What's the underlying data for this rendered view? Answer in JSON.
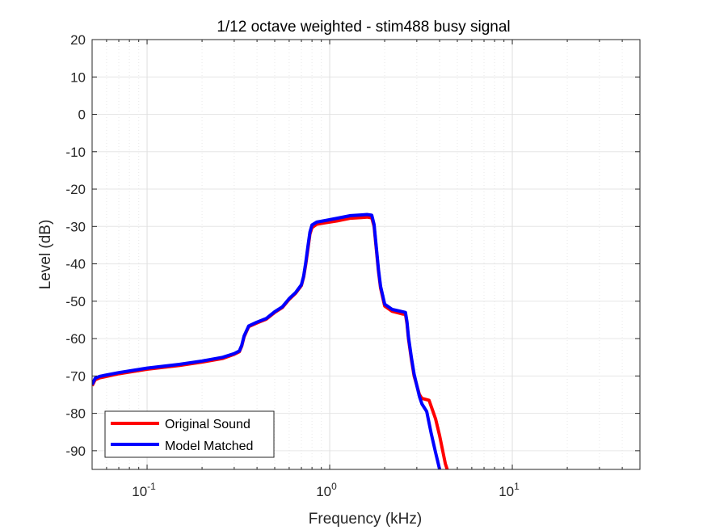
{
  "chart_data": {
    "type": "line",
    "title": "1/12 octave weighted - stim488 busy signal",
    "xlabel": "Frequency (kHz)",
    "ylabel": "Level (dB)",
    "x_scale": "log",
    "xlim": [
      0.05,
      50
    ],
    "ylim": [
      -95,
      20
    ],
    "yticks": [
      20,
      10,
      0,
      -10,
      -20,
      -30,
      -40,
      -50,
      -60,
      -70,
      -80,
      -90
    ],
    "xticks": [
      {
        "value": 0.1,
        "base": "10",
        "exp": "-1"
      },
      {
        "value": 1,
        "base": "10",
        "exp": "0"
      },
      {
        "value": 10,
        "base": "10",
        "exp": "1"
      }
    ],
    "grid": true,
    "legend_position": "bottom-left",
    "series": [
      {
        "name": "Original Sound",
        "color": "#ff0000",
        "points": [
          [
            0.05,
            -72.6
          ],
          [
            0.052,
            -71
          ],
          [
            0.055,
            -70.5
          ],
          [
            0.07,
            -69.4
          ],
          [
            0.1,
            -68.2
          ],
          [
            0.15,
            -67.2
          ],
          [
            0.2,
            -66.3
          ],
          [
            0.26,
            -65.3
          ],
          [
            0.3,
            -64.2
          ],
          [
            0.32,
            -63.5
          ],
          [
            0.33,
            -62
          ],
          [
            0.34,
            -59.5
          ],
          [
            0.36,
            -56.8
          ],
          [
            0.4,
            -55.8
          ],
          [
            0.45,
            -54.8
          ],
          [
            0.5,
            -53
          ],
          [
            0.55,
            -51.7
          ],
          [
            0.6,
            -49.5
          ],
          [
            0.65,
            -47.9
          ],
          [
            0.7,
            -45.8
          ],
          [
            0.72,
            -43.5
          ],
          [
            0.74,
            -40
          ],
          [
            0.76,
            -36
          ],
          [
            0.78,
            -32
          ],
          [
            0.8,
            -30.3
          ],
          [
            0.85,
            -29.4
          ],
          [
            0.95,
            -29
          ],
          [
            1.1,
            -28.5
          ],
          [
            1.3,
            -27.8
          ],
          [
            1.5,
            -27.6
          ],
          [
            1.6,
            -27.5
          ],
          [
            1.7,
            -27.7
          ],
          [
            1.75,
            -30
          ],
          [
            1.8,
            -36
          ],
          [
            1.85,
            -42
          ],
          [
            1.9,
            -46.5
          ],
          [
            2.0,
            -51.3
          ],
          [
            2.2,
            -52.7
          ],
          [
            2.5,
            -53.4
          ],
          [
            2.6,
            -53.5
          ],
          [
            2.65,
            -56
          ],
          [
            2.7,
            -60
          ],
          [
            2.8,
            -65.5
          ],
          [
            2.9,
            -70
          ],
          [
            3.1,
            -75
          ],
          [
            3.2,
            -76
          ],
          [
            3.5,
            -76.5
          ],
          [
            3.8,
            -81.5
          ],
          [
            4.0,
            -86
          ],
          [
            4.3,
            -93.5
          ],
          [
            4.4,
            -95
          ]
        ]
      },
      {
        "name": "Model Matched",
        "color": "#0000ff",
        "points": [
          [
            0.05,
            -72.3
          ],
          [
            0.052,
            -70.6
          ],
          [
            0.055,
            -70.1
          ],
          [
            0.07,
            -69.1
          ],
          [
            0.1,
            -67.9
          ],
          [
            0.15,
            -66.9
          ],
          [
            0.2,
            -66.0
          ],
          [
            0.26,
            -65.0
          ],
          [
            0.3,
            -64.0
          ],
          [
            0.32,
            -63.3
          ],
          [
            0.33,
            -61.8
          ],
          [
            0.34,
            -59.3
          ],
          [
            0.36,
            -56.6
          ],
          [
            0.4,
            -55.6
          ],
          [
            0.45,
            -54.6
          ],
          [
            0.5,
            -52.8
          ],
          [
            0.55,
            -51.5
          ],
          [
            0.6,
            -49.3
          ],
          [
            0.65,
            -47.7
          ],
          [
            0.7,
            -45.6
          ],
          [
            0.72,
            -43.3
          ],
          [
            0.74,
            -39.5
          ],
          [
            0.76,
            -35.3
          ],
          [
            0.78,
            -31.5
          ],
          [
            0.8,
            -29.6
          ],
          [
            0.85,
            -28.8
          ],
          [
            0.95,
            -28.4
          ],
          [
            1.1,
            -27.8
          ],
          [
            1.3,
            -27.1
          ],
          [
            1.5,
            -26.9
          ],
          [
            1.6,
            -26.8
          ],
          [
            1.7,
            -27.0
          ],
          [
            1.75,
            -29.5
          ],
          [
            1.8,
            -35.5
          ],
          [
            1.85,
            -41.5
          ],
          [
            1.9,
            -46
          ],
          [
            2.0,
            -50.8
          ],
          [
            2.2,
            -52.2
          ],
          [
            2.5,
            -52.8
          ],
          [
            2.6,
            -53.0
          ],
          [
            2.65,
            -55.5
          ],
          [
            2.7,
            -59.5
          ],
          [
            2.8,
            -65
          ],
          [
            2.9,
            -69.5
          ],
          [
            3.1,
            -75.5
          ],
          [
            3.2,
            -77.5
          ],
          [
            3.4,
            -79.5
          ],
          [
            3.6,
            -85.5
          ],
          [
            3.8,
            -90.5
          ],
          [
            4.0,
            -95
          ]
        ]
      }
    ]
  }
}
